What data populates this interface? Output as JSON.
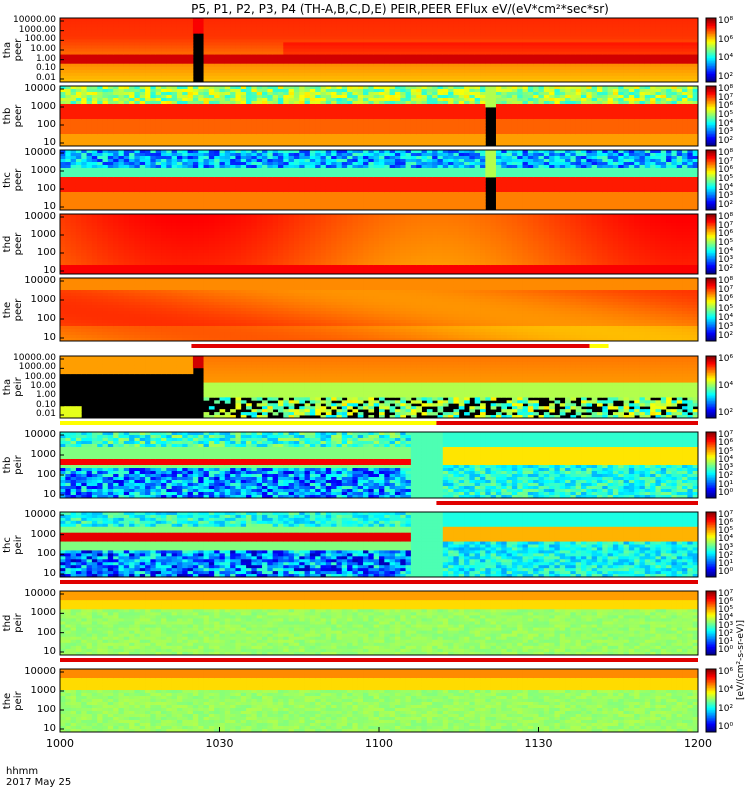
{
  "chart_data": {
    "type": "heatmap",
    "title": "P5, P1, P2, P3, P4 (TH-A,B,C,D,E) PEIR,PEER EFlux eV/(eV*cm²*sec*sr)",
    "x_axis": {
      "ticks": [
        "1000",
        "1030",
        "1100",
        "1130",
        "1200"
      ],
      "footer_lines": [
        "hhmm",
        "2017 May 25"
      ]
    },
    "colorbar_units": "[eV/(cm²-s-sr-eV)]",
    "panels": [
      {
        "label_top": "tha",
        "label_bottom": "peer",
        "yticks": [
          "10000.00",
          "1000.00",
          "100.00",
          "10.00",
          "1.00",
          "0.10",
          "0.01"
        ],
        "cb_ticks": [
          "10⁸",
          "10⁶",
          "10⁴",
          "10²"
        ]
      },
      {
        "label_top": "thb",
        "label_bottom": "peer",
        "yticks": [
          "10000",
          "1000",
          "100",
          "10"
        ],
        "cb_ticks": [
          "10⁸",
          "10⁷",
          "10⁶",
          "10⁵",
          "10⁴",
          "10³",
          "10²"
        ]
      },
      {
        "label_top": "thc",
        "label_bottom": "peer",
        "yticks": [
          "10000",
          "1000",
          "100",
          "10"
        ],
        "cb_ticks": [
          "10⁸",
          "10⁷",
          "10⁶",
          "10⁵",
          "10⁴",
          "10³",
          "10²"
        ]
      },
      {
        "label_top": "thd",
        "label_bottom": "peer",
        "yticks": [
          "10000",
          "1000",
          "100",
          "10"
        ],
        "cb_ticks": [
          "10⁸",
          "10⁷",
          "10⁶",
          "10⁵",
          "10⁴",
          "10³",
          "10²"
        ]
      },
      {
        "label_top": "the",
        "label_bottom": "peer",
        "yticks": [
          "10000",
          "1000",
          "100",
          "10"
        ],
        "cb_ticks": [
          "10⁸",
          "10⁷",
          "10⁶",
          "10⁵",
          "10⁴",
          "10³",
          "10²"
        ]
      },
      {
        "label_top": "tha",
        "label_bottom": "peir",
        "yticks": [
          "10000.00",
          "1000.00",
          "100.00",
          "10.00",
          "1.00",
          "0.10",
          "0.01"
        ],
        "cb_ticks": [
          "10⁶",
          "10⁴",
          "10²"
        ]
      },
      {
        "label_top": "thb",
        "label_bottom": "peir",
        "yticks": [
          "10000",
          "1000",
          "100",
          "10"
        ],
        "cb_ticks": [
          "10⁷",
          "10⁶",
          "10⁵",
          "10⁴",
          "10³",
          "10²",
          "10¹",
          "10⁰"
        ]
      },
      {
        "label_top": "thc",
        "label_bottom": "peir",
        "yticks": [
          "10000",
          "1000",
          "100",
          "10"
        ],
        "cb_ticks": [
          "10⁷",
          "10⁶",
          "10⁵",
          "10⁴",
          "10³",
          "10²",
          "10¹",
          "10⁰"
        ]
      },
      {
        "label_top": "thd",
        "label_bottom": "peir",
        "yticks": [
          "10000",
          "1000",
          "100",
          "10"
        ],
        "cb_ticks": [
          "10⁷",
          "10⁶",
          "10⁵",
          "10⁴",
          "10³",
          "10²",
          "10¹",
          "10⁰"
        ]
      },
      {
        "label_top": "the",
        "label_bottom": "peir",
        "yticks": [
          "10000",
          "1000",
          "100",
          "10"
        ],
        "cb_ticks": [
          "10⁶",
          "10⁴",
          "10²",
          "10⁰"
        ]
      }
    ]
  }
}
